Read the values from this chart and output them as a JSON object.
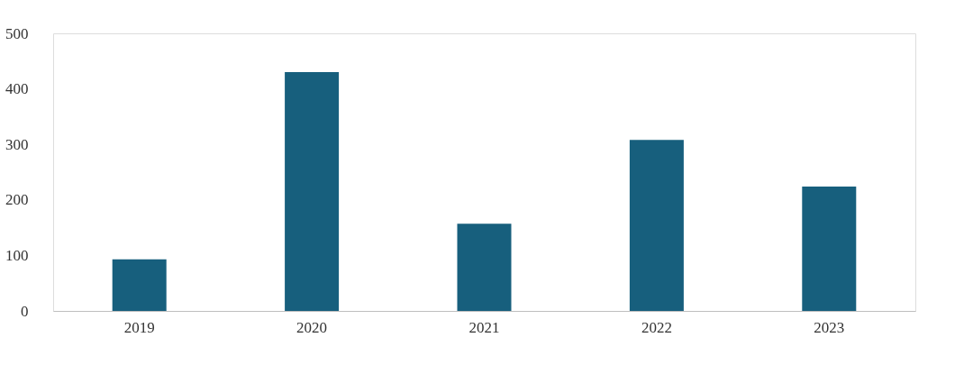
{
  "chart_data": {
    "type": "bar",
    "categories": [
      "2019",
      "2020",
      "2021",
      "2022",
      "2023"
    ],
    "values": [
      93,
      430,
      157,
      308,
      224
    ],
    "color": "#175f7d",
    "ylim": [
      0,
      500
    ],
    "yticks": [
      0,
      100,
      200,
      300,
      400,
      500
    ],
    "grid": false
  }
}
